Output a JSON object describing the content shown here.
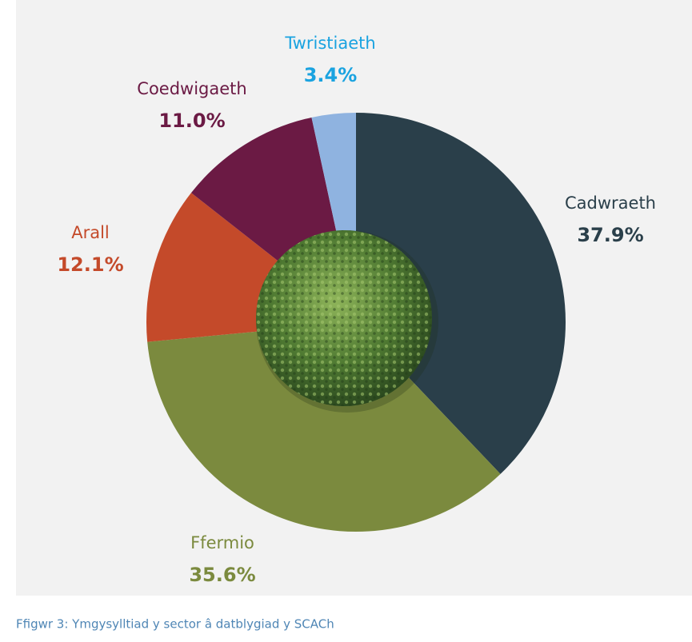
{
  "chart_data": {
    "type": "pie",
    "caption": "Ffigwr 3: Ymgysylltiad y sector â datblygiad y SCACh",
    "categories": [
      "Cadwraeth",
      "Ffermio",
      "Arall",
      "Coedwigaeth",
      "Twristiaeth"
    ],
    "values": [
      37.9,
      35.6,
      12.1,
      11.0,
      3.4
    ],
    "value_labels": [
      "37.9%",
      "35.6%",
      "12.1%",
      "11.0%",
      "3.4%"
    ],
    "colors": [
      "#2a3f4a",
      "#7b8a3e",
      "#c44a2a",
      "#6b1a44",
      "#8fb3e0"
    ],
    "label_colors": [
      "#2a3f4a",
      "#7b8a3e",
      "#c44a2a",
      "#6b1a44",
      "#1aa3e0"
    ]
  }
}
